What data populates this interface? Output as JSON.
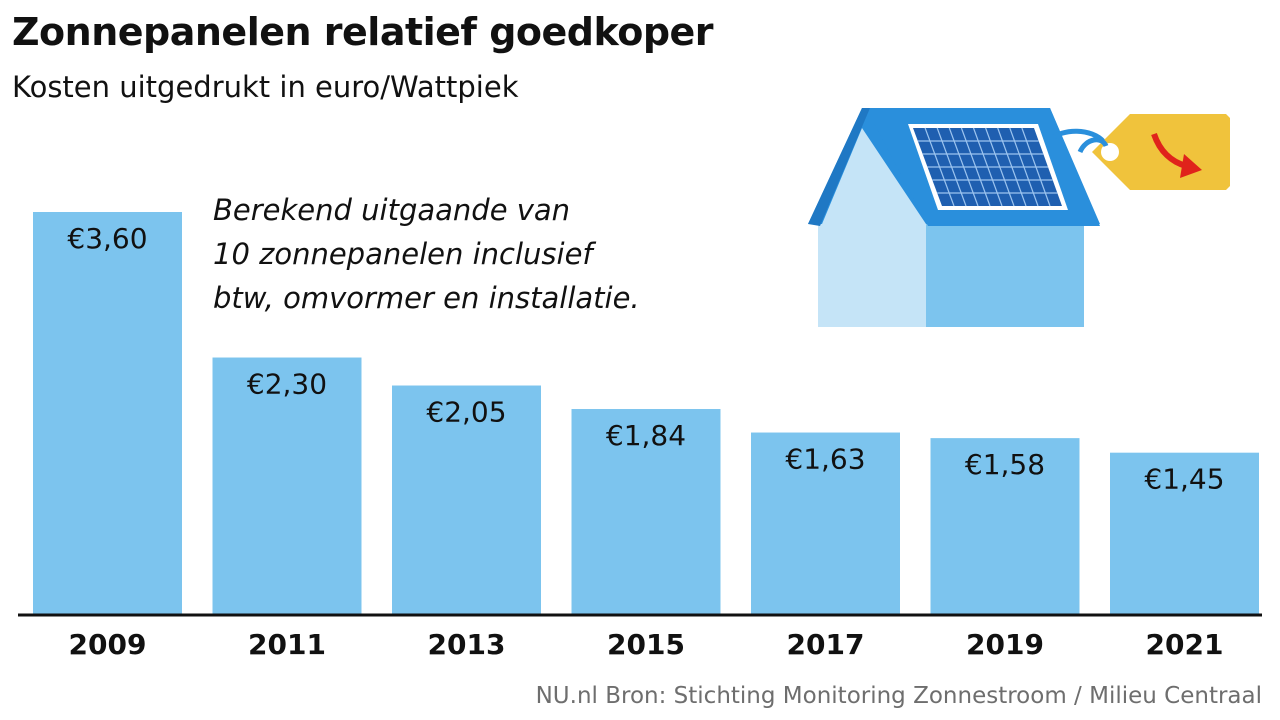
{
  "header": {
    "title": "Zonnepanelen relatief goedkoper",
    "subtitle": "Kosten uitgedrukt in euro/Wattpiek"
  },
  "note": {
    "lines": [
      "Berekend uitgaande van",
      "10 zonnepanelen inclusief",
      "btw, omvormer en installatie."
    ]
  },
  "footer": {
    "source": "NU.nl Bron: Stichting Monitoring Zonnestroom / Milieu Centraal"
  },
  "colors": {
    "bar": "#7cc4ee",
    "axis": "#111111",
    "roof": "#2a8fdc",
    "panel": "#1f5fb0",
    "tag": "#f0c33c",
    "arrow": "#e0231b"
  },
  "chart_data": {
    "type": "bar",
    "title": "Zonnepanelen relatief goedkoper",
    "subtitle": "Kosten uitgedrukt in euro/Wattpiek",
    "categories": [
      "2009",
      "2011",
      "2013",
      "2015",
      "2017",
      "2019",
      "2021"
    ],
    "values": [
      3.6,
      2.3,
      2.05,
      1.84,
      1.63,
      1.58,
      1.45
    ],
    "value_labels": [
      "€3,60",
      "€2,30",
      "€2,05",
      "€1,84",
      "€1,63",
      "€1,58",
      "€1,45"
    ],
    "xlabel": "",
    "ylabel": "",
    "ylim": [
      0,
      3.6
    ],
    "grid": false,
    "legend": "none"
  }
}
